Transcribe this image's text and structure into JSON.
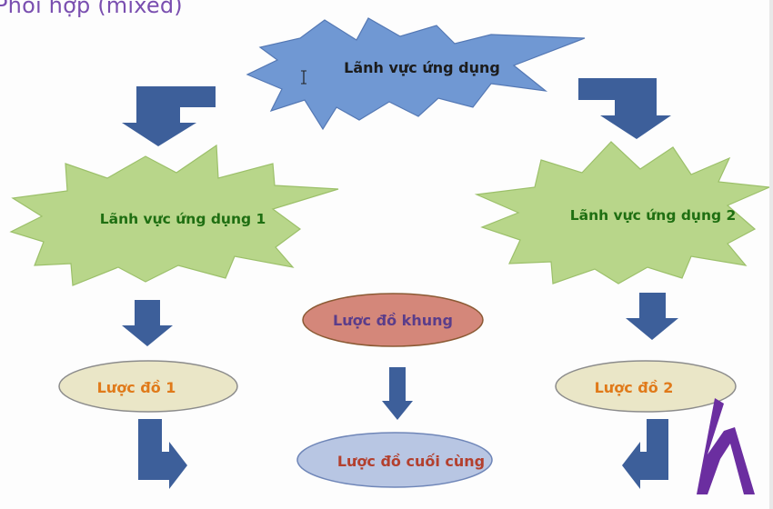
{
  "title": "Phối hợp (mixed)",
  "nodes": {
    "top_star": "Lãnh vực ứng dụng",
    "left_star": "Lãnh vực ứng dụng 1",
    "right_star": "Lãnh vực ứng dụng 2",
    "frame_schema": "Lược đồ khung",
    "schema_1": "Lược đồ 1",
    "schema_2": "Lược đồ 2",
    "final_schema": "Lược đồ cuối cùng"
  },
  "colors": {
    "title": "#7a4fb0",
    "arrow": "#3d5f9a",
    "top_star_fill": "#7098d3",
    "green_star_fill": "#b8d68a",
    "green_text": "#1f6f12",
    "frame_fill": "#d4877a",
    "frame_text": "#5b3d8a",
    "schema_fill": "#eae6c7",
    "schema_text": "#e07a1a",
    "final_fill": "#b8c6e3",
    "final_text": "#b3402e",
    "logo": "#6b2ea0"
  },
  "logo": {
    "name": "h-logo"
  }
}
